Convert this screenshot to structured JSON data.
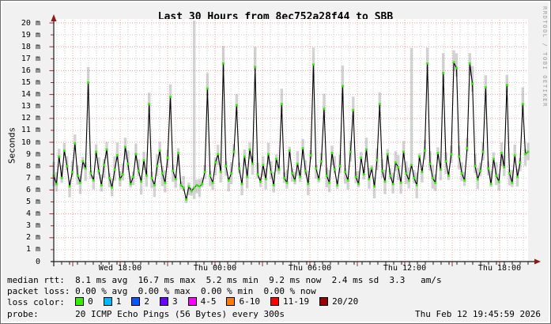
{
  "watermark": "RRDTOOL / TOBI OETIKER",
  "chart_data": {
    "type": "line",
    "title": "Last 30 Hours from 8ec752a28f44 to SBB",
    "ylabel": "Seconds",
    "ylim_ms": [
      0,
      20
    ],
    "grid": "red dotted major every 2ms and 3h, gray dotted minor every 1ms and 30min",
    "y_ticks": [
      "20 m",
      "19 m",
      "18 m",
      "17 m",
      "16 m",
      "15 m",
      "14 m",
      "13 m",
      "12 m",
      "11 m",
      "10 m",
      "9 m",
      "8 m",
      "7 m",
      "6 m",
      "5 m",
      "4 m",
      "3 m",
      "2 m",
      "1 m",
      "0"
    ],
    "x_ticks": [
      "Wed 18:00",
      "Thu 00:00",
      "Thu 06:00",
      "Thu 12:00",
      "Thu 18:00"
    ],
    "series": [
      {
        "name": "median rtt (ms), 300s samples over last 30 hours",
        "values": [
          7.2,
          6.5,
          8.8,
          7.0,
          9.3,
          8.0,
          6.3,
          7.5,
          9.9,
          7.2,
          6.6,
          8.4,
          7.8,
          15.0,
          7.4,
          6.8,
          9.2,
          7.6,
          6.4,
          8.1,
          9.4,
          7.0,
          6.2,
          7.7,
          8.9,
          6.9,
          7.3,
          9.6,
          8.2,
          6.5,
          7.1,
          9.0,
          7.6,
          6.7,
          8.5,
          7.2,
          13.2,
          7.0,
          6.4,
          8.0,
          9.3,
          7.4,
          6.6,
          8.7,
          13.8,
          7.6,
          6.9,
          9.1,
          6.4,
          6.2,
          5.2,
          6.3,
          5.9,
          6.2,
          6.4,
          6.3,
          6.5,
          7.5,
          14.5,
          7.2,
          6.6,
          8.3,
          9.0,
          7.5,
          16.6,
          8.0,
          6.8,
          7.4,
          9.2,
          13.1,
          7.8,
          6.5,
          8.8,
          7.1,
          9.4,
          8.2,
          16.3,
          7.3,
          6.7,
          8.1,
          6.9,
          9.0,
          7.5,
          6.4,
          8.6,
          7.7,
          13.2,
          7.0,
          6.6,
          9.3,
          7.4,
          6.8,
          8.2,
          7.1,
          9.5,
          7.6,
          6.5,
          8.9,
          16.5,
          7.8,
          6.9,
          8.4,
          12.8,
          7.2,
          6.6,
          9.1,
          7.7,
          6.4,
          8.0,
          14.7,
          7.5,
          6.8,
          9.2,
          12.7,
          7.1,
          6.5,
          8.7,
          7.3,
          9.4,
          6.9,
          7.8,
          6.3,
          8.5,
          13.2,
          7.6,
          6.7,
          9.0,
          7.2,
          6.5,
          8.3,
          7.9,
          6.6,
          9.2,
          7.4,
          6.8,
          8.1,
          7.0,
          6.4,
          8.8,
          7.5,
          9.3,
          16.6,
          8.2,
          7.0,
          6.6,
          9.1,
          7.7,
          15.8,
          8.4,
          7.2,
          9.0,
          16.7,
          16.2,
          8.8,
          7.4,
          6.8,
          9.5,
          16.6,
          14.9,
          8.0,
          6.9,
          7.6,
          9.2,
          14.6,
          7.8,
          6.5,
          8.6,
          7.2,
          6.7,
          9.1,
          7.9,
          14.8,
          7.4,
          6.6,
          8.9,
          7.1,
          8.3,
          13.2,
          9.0,
          9.2
        ]
      }
    ],
    "smoke_high_overrides": {
      "53": 20.2,
      "135": 17.9
    },
    "colors": {
      "median_line": "#000000",
      "point": "#2cf000",
      "smoke": "#8c8c8c",
      "grid_major": "#ef9b9b",
      "grid_minor": "#c9c9c9",
      "axis": "#1a1a1a",
      "arrow": "#8b1a1a",
      "tick_major": "#b22222"
    }
  },
  "legend": {
    "median_rtt": "median rtt:  8.1 ms avg  16.7 ms max  5.2 ms min  9.2 ms now  2.4 ms sd  3.3   am/s",
    "packet_loss": "packet loss: 0.00 % avg  0.00 % max  0.00 % min  0.00 % now",
    "loss_color_label": "loss color:  ",
    "loss_colors": [
      {
        "label": "0",
        "color": "#33f000"
      },
      {
        "label": "1",
        "color": "#00b8ff"
      },
      {
        "label": "2",
        "color": "#0059ff"
      },
      {
        "label": "3",
        "color": "#6e00ff"
      },
      {
        "label": "4-5",
        "color": "#ff00ff"
      },
      {
        "label": "6-10",
        "color": "#ff7a00"
      },
      {
        "label": "11-19",
        "color": "#ff0000"
      },
      {
        "label": "20/20",
        "color": "#990000"
      }
    ],
    "probe_label": "probe:       ",
    "probe_value": "20 ICMP Echo Pings (56 Bytes) every 300s",
    "timestamp": "Thu Feb 12 19:45:59 2026"
  }
}
